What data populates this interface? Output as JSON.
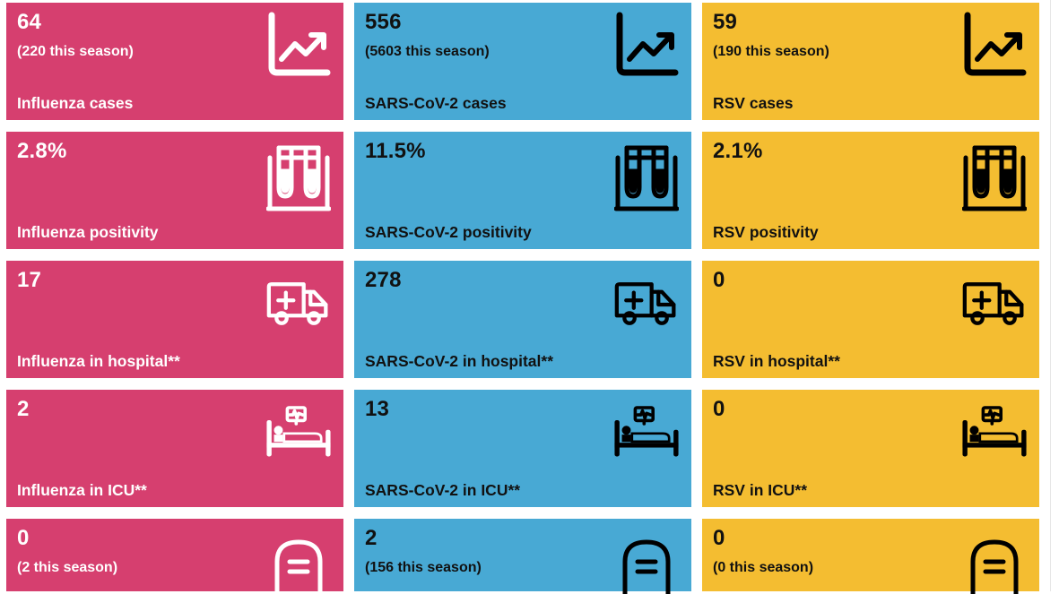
{
  "rows": [
    {
      "flu": {
        "value": "64",
        "sub": "(220 this season)",
        "label": "Influenza cases"
      },
      "covid": {
        "value": "556",
        "sub": "(5603 this season)",
        "label": "SARS-CoV-2 cases"
      },
      "rsv": {
        "value": "59",
        "sub": "(190 this season)",
        "label": "RSV cases"
      },
      "icon": "trend-chart-icon"
    },
    {
      "flu": {
        "value": "2.8%",
        "label": "Influenza positivity"
      },
      "covid": {
        "value": "11.5%",
        "label": "SARS-CoV-2 positivity"
      },
      "rsv": {
        "value": "2.1%",
        "label": "RSV positivity"
      },
      "icon": "test-tubes-icon"
    },
    {
      "flu": {
        "value": "17",
        "label": "Influenza in hospital**"
      },
      "covid": {
        "value": "278",
        "label": "SARS-CoV-2 in hospital**"
      },
      "rsv": {
        "value": "0",
        "label": "RSV in hospital**"
      },
      "icon": "ambulance-icon"
    },
    {
      "flu": {
        "value": "2",
        "label": "Influenza in ICU**"
      },
      "covid": {
        "value": "13",
        "label": "SARS-CoV-2 in ICU**"
      },
      "rsv": {
        "value": "0",
        "label": "RSV in ICU**"
      },
      "icon": "icu-bed-icon"
    },
    {
      "flu": {
        "value": "0",
        "sub": "(2 this season)"
      },
      "covid": {
        "value": "2",
        "sub": "(156 this season)"
      },
      "rsv": {
        "value": "0",
        "sub": "(0 this season)"
      },
      "icon": "gravestone-icon"
    }
  ],
  "colors": {
    "influenza": "#d63f6f",
    "sars_cov_2": "#48a9d4",
    "rsv": "#f4bd31"
  }
}
